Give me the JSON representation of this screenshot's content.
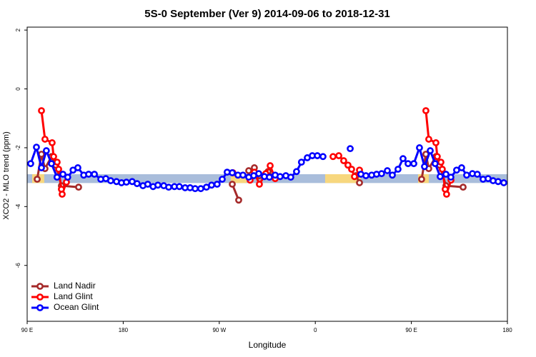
{
  "chart_data": {
    "type": "line",
    "title": "5S-0 September (Ver 9)   2014-09-06 to 2018-12-31",
    "x_label": "Longitude",
    "y_label": "XCO2 - MLO trend (ppm)",
    "xlim": [
      90,
      540
    ],
    "xticks": [
      {
        "value": 90,
        "label": "90 E"
      },
      {
        "value": 180,
        "label": "180"
      },
      {
        "value": 270,
        "label": "90 W"
      },
      {
        "value": 360,
        "label": "0"
      },
      {
        "value": 450,
        "label": "90 E"
      },
      {
        "value": 540,
        "label": "180"
      }
    ],
    "ylim": [
      -7.9,
      2.1
    ],
    "yticks": [
      2,
      0,
      -2,
      -4,
      -6
    ],
    "legend": "bottomleft",
    "band": {
      "ylim": [
        -3.2,
        -2.9
      ],
      "color": "#a9bddb",
      "highlights": [
        {
          "x": [
            94.7,
            106
          ],
          "color": "#f7d77e"
        },
        {
          "x": [
            280.8,
            295.6
          ],
          "color": "#f7d77e"
        },
        {
          "x": [
            369.2,
            402.7
          ],
          "color": "#f7d77e"
        },
        {
          "x": [
            456.3,
            466.3
          ],
          "color": "#f7d77e"
        }
      ]
    },
    "series": [
      {
        "name": "Land Nadir",
        "color": "#a52a2a",
        "x": [
          99.4,
          103.4,
          106.7,
          112.8,
          116.8,
          122.1,
          138.2,
          null,
          282.2,
          288.2,
          null,
          297.6,
          302.9,
          307.6,
          315.7,
          322.4,
          null,
          398,
          401.4,
          null,
          459.6,
          463.6,
          466.3,
          473,
          476.4,
          482.4,
          498.5
        ],
        "values": [
          -3.07,
          -2.22,
          -2.71,
          -2.3,
          -2.59,
          -3.29,
          -3.34,
          null,
          -3.24,
          -3.78,
          null,
          -2.78,
          -2.68,
          -2.95,
          -2.81,
          -3.03,
          null,
          -2.95,
          -3.19,
          null,
          -3.07,
          -2.22,
          -2.71,
          -2.3,
          -2.59,
          -3.29,
          -3.34
        ]
      },
      {
        "name": "Land Glint",
        "color": "#ff0000",
        "x": [
          103.4,
          106.7,
          113.4,
          114.8,
          118.1,
          119.5,
          122.1,
          122.8,
          126.8,
          null,
          282.8,
          null,
          298.9,
          302.9,
          307.6,
          313.6,
          317.7,
          322.4,
          null,
          376.6,
          382,
          386.6,
          390.6,
          394,
          396.7,
          401.4,
          null,
          463.6,
          466.3,
          473,
          474.3,
          477.7,
          479,
          481.7,
          483,
          487.1
        ],
        "values": [
          -0.74,
          -1.71,
          -1.83,
          -2.3,
          -2.49,
          -2.73,
          -3.41,
          -3.58,
          -3.17,
          null,
          -2.85,
          null,
          -3.1,
          -2.83,
          -3.24,
          -2.88,
          -2.61,
          -3.05,
          null,
          -2.3,
          -2.27,
          -2.44,
          -2.59,
          -2.73,
          -2.98,
          -2.76,
          null,
          -0.74,
          -1.71,
          -1.83,
          -2.3,
          -2.49,
          -2.73,
          -3.41,
          -3.58,
          -3.1
        ]
      },
      {
        "name": "Ocean Glint",
        "color": "#0000ff",
        "x": [
          93.3,
          98.7,
          103.4,
          108,
          112.8,
          118,
          123.5,
          128,
          133,
          137.5,
          143,
          147.6,
          153,
          159,
          163.7,
          168.3,
          173.7,
          178.4,
          183,
          188.4,
          193,
          198.5,
          203,
          208,
          212.5,
          218,
          222.6,
          228,
          232.6,
          238,
          242.7,
          247.4,
          252.7,
          258,
          262.8,
          268,
          272.8,
          277.4,
          282.2,
          287.5,
          292.2,
          297.6,
          302.3,
          307,
          312.3,
          317,
          322.4,
          327,
          332.4,
          337,
          342.4,
          347,
          352.5,
          357.2,
          361.9,
          367.2,
          null,
          392.7,
          null,
          402.7,
          407.4,
          412.8,
          417.4,
          422.1,
          427.5,
          432.2,
          437.5,
          442.2,
          446.9,
          452.3,
          457.6,
          462.3,
          467.7,
          472.3,
          477,
          482.4,
          487,
          492.4,
          497.1,
          501.8,
          507.2,
          511.8,
          517.2,
          521.9,
          526.6,
          531.3,
          536.6
        ],
        "values": [
          -2.54,
          -1.98,
          -2.68,
          -2.1,
          -2.54,
          -3.0,
          -2.9,
          -3.0,
          -2.76,
          -2.68,
          -2.93,
          -2.9,
          -2.9,
          -3.07,
          -3.05,
          -3.12,
          -3.15,
          -3.19,
          -3.17,
          -3.15,
          -3.22,
          -3.29,
          -3.24,
          -3.32,
          -3.27,
          -3.29,
          -3.34,
          -3.32,
          -3.32,
          -3.36,
          -3.36,
          -3.39,
          -3.39,
          -3.34,
          -3.27,
          -3.24,
          -3.07,
          -2.83,
          -2.85,
          -2.93,
          -2.93,
          -3.0,
          -2.95,
          -2.88,
          -2.98,
          -3.0,
          -2.93,
          -2.98,
          -2.95,
          -3.0,
          -2.81,
          -2.49,
          -2.34,
          -2.27,
          -2.27,
          -2.3,
          null,
          -2.03,
          null,
          -2.9,
          -2.95,
          -2.93,
          -2.9,
          -2.88,
          -2.78,
          -2.93,
          -2.73,
          -2.37,
          -2.54,
          -2.54,
          -2.0,
          -2.64,
          -2.1,
          -2.54,
          -2.98,
          -2.9,
          -3.0,
          -2.76,
          -2.68,
          -2.93,
          -2.88,
          -2.9,
          -3.07,
          -3.05,
          -3.12,
          -3.15,
          -3.19
        ]
      }
    ]
  }
}
